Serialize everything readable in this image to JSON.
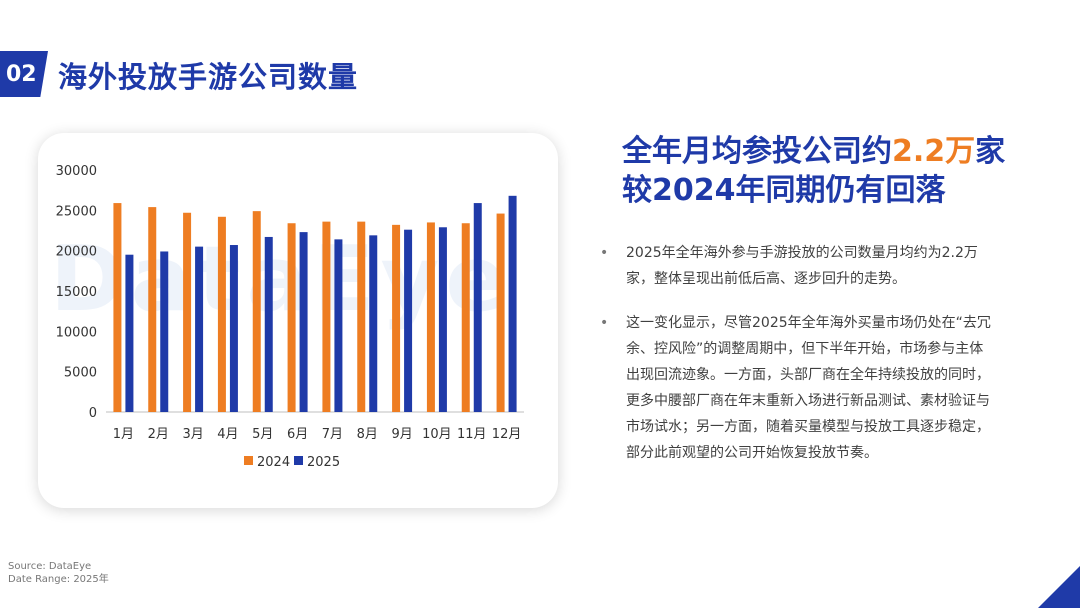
{
  "section": {
    "number": "02",
    "title": "海外投放手游公司数量"
  },
  "headline": {
    "line1_prefix": "全年月均参投公司约",
    "line1_highlight": "2.2万",
    "line1_suffix": "家",
    "line2": "较2024年同期仍有回落"
  },
  "bullets": [
    "2025年全年海外参与手游投放的公司数量月均约为2.2万家，整体呈现出前低后高、逐步回升的走势。",
    "这一变化显示，尽管2025年全年海外买量市场仍处在“去冗余、控风险”的调整周期中，但下半年开始，市场参与主体出现回流迹象。一方面，头部厂商在全年持续投放的同时，更多中腰部厂商在年末重新入场进行新品测试、素材验证与市场试水；另一方面，随着买量模型与投放工具逐步稳定，部分此前观望的公司开始恢复投放节奏。"
  ],
  "watermark": "DataEye",
  "source": {
    "line1": "Source: DataEye",
    "line2": "Date Range: 2025年"
  },
  "colors": {
    "accent": "#1f3aa8",
    "highlight": "#ee7d22",
    "series_2024": "#ee7d22",
    "series_2025": "#1f3aa8"
  },
  "chart_data": {
    "type": "bar",
    "categories": [
      "1月",
      "2月",
      "3月",
      "4月",
      "5月",
      "6月",
      "7月",
      "8月",
      "9月",
      "10月",
      "11月",
      "12月"
    ],
    "series": [
      {
        "name": "2024",
        "color": "#ee7d22",
        "values": [
          25900,
          25400,
          24700,
          24200,
          24900,
          23400,
          23600,
          23600,
          23200,
          23500,
          23400,
          24600
        ]
      },
      {
        "name": "2025",
        "color": "#1f3aa8",
        "values": [
          19500,
          19900,
          20500,
          20700,
          21700,
          22300,
          21400,
          21900,
          22600,
          22900,
          25900,
          26800
        ]
      }
    ],
    "ylim": [
      0,
      30000
    ],
    "yticks": [
      0,
      5000,
      10000,
      15000,
      20000,
      25000,
      30000
    ],
    "grid": false,
    "legend_position": "bottom"
  }
}
